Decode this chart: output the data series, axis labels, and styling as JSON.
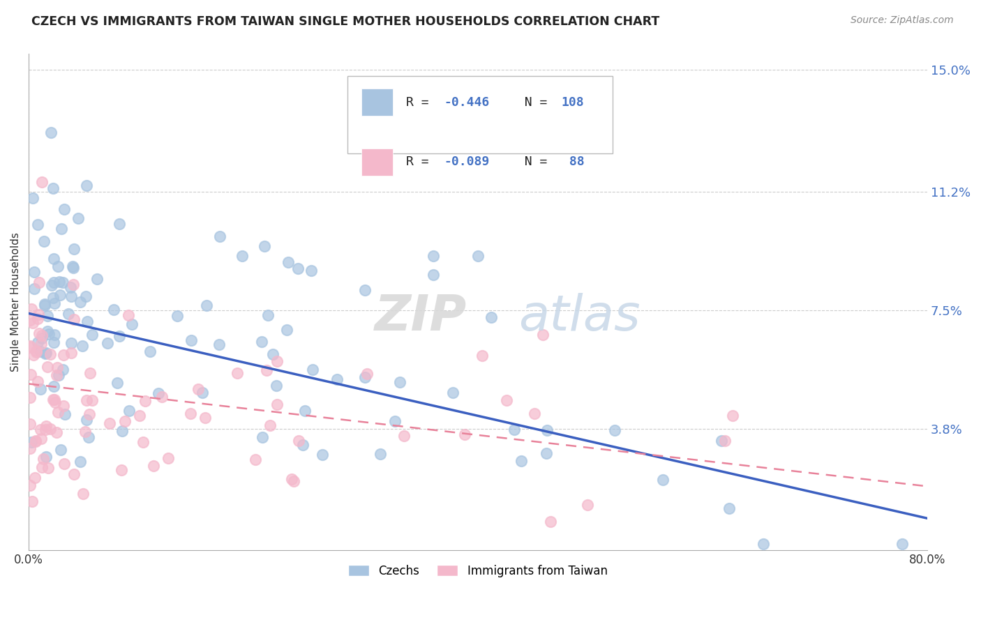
{
  "title": "CZECH VS IMMIGRANTS FROM TAIWAN SINGLE MOTHER HOUSEHOLDS CORRELATION CHART",
  "source_text": "Source: ZipAtlas.com",
  "ylabel": "Single Mother Households",
  "r1": -0.446,
  "n1": 108,
  "r2": -0.089,
  "n2": 88,
  "xlim": [
    0.0,
    0.8
  ],
  "ylim": [
    0.0,
    0.155
  ],
  "ytick_vals": [
    0.038,
    0.075,
    0.112,
    0.15
  ],
  "ytick_labels": [
    "3.8%",
    "7.5%",
    "11.2%",
    "15.0%"
  ],
  "color1": "#a8c4e0",
  "color2": "#f4b8cb",
  "line_color1": "#3b5fc0",
  "line_color2": "#e8829a",
  "legend_label1": "Czechs",
  "legend_label2": "Immigrants from Taiwan",
  "background_color": "#ffffff",
  "title_color": "#222222",
  "source_color": "#888888",
  "grid_color": "#cccccc",
  "blue_text": "#4472c4",
  "pink_text": "#e05080"
}
